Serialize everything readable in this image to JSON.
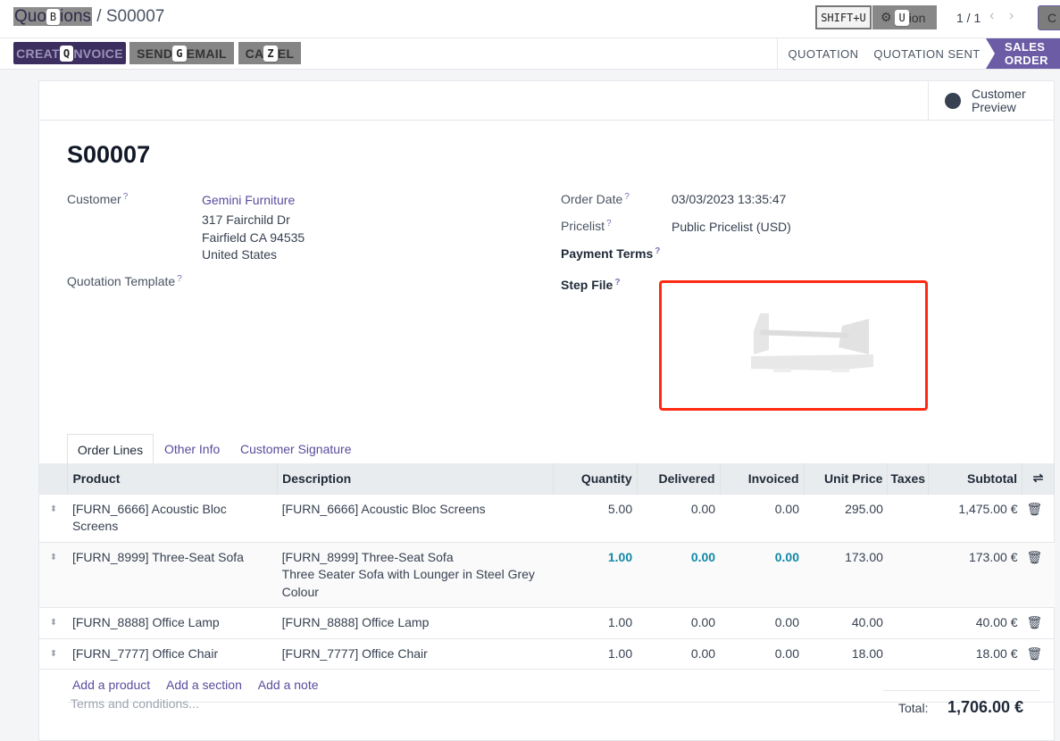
{
  "breadcrumb": {
    "parent_part1": "Quo",
    "parent_key": "B",
    "parent_part2": "ions",
    "separator": "/",
    "current": "S00007"
  },
  "topbar": {
    "shortcut_label": "SHIFT+U",
    "action_key": "U",
    "action_text": "ion",
    "pager": "1 / 1",
    "create_partial": "C"
  },
  "actions": [
    {
      "part1": "CREAT",
      "key": "Q",
      "part2": "NVOICE"
    },
    {
      "part1": "SEND ",
      "key": "G",
      "part2": "EMAIL"
    },
    {
      "part1": "CA",
      "key": "Z",
      "part2": "EL"
    }
  ],
  "statusbar": [
    "QUOTATION",
    "QUOTATION SENT",
    "SALES ORDER"
  ],
  "customer_preview": {
    "line1": "Customer",
    "line2": "Preview"
  },
  "record": {
    "name": "S00007",
    "customer_label": "Customer",
    "customer_name": "Gemini Furniture",
    "address1": "317 Fairchild Dr",
    "address2": "Fairfield CA 94535",
    "address3": "United States",
    "template_label": "Quotation Template",
    "order_date_label": "Order Date",
    "order_date": "03/03/2023 13:35:47",
    "pricelist_label": "Pricelist",
    "pricelist": "Public Pricelist (USD)",
    "payment_terms_label": "Payment Terms",
    "step_file_label": "Step File",
    "help": "?"
  },
  "tabs": [
    "Order Lines",
    "Other Info",
    "Customer Signature"
  ],
  "columns": [
    "Product",
    "Description",
    "Quantity",
    "Delivered",
    "Invoiced",
    "Unit Price",
    "Taxes",
    "Subtotal"
  ],
  "lines": [
    {
      "product": "[FURN_6666] Acoustic Bloc Screens",
      "desc1": "[FURN_6666] Acoustic Bloc Screens",
      "desc2": "",
      "desc3": "",
      "qty": "5.00",
      "delivered": "0.00",
      "invoiced": "0.00",
      "price": "295.00",
      "taxes": "",
      "subtotal": "1,475.00 €"
    },
    {
      "product": "[FURN_8999] Three-Seat Sofa",
      "desc1": "[FURN_8999] Three-Seat Sofa",
      "desc2": "Three Seater Sofa with Lounger in Steel Grey",
      "desc3": "Colour",
      "qty": "1.00",
      "delivered": "0.00",
      "invoiced": "0.00",
      "price": "173.00",
      "taxes": "",
      "subtotal": "173.00 €"
    },
    {
      "product": "[FURN_8888] Office Lamp",
      "desc1": "[FURN_8888] Office Lamp",
      "desc2": "",
      "desc3": "",
      "qty": "1.00",
      "delivered": "0.00",
      "invoiced": "0.00",
      "price": "40.00",
      "taxes": "",
      "subtotal": "40.00 €"
    },
    {
      "product": "[FURN_7777] Office Chair",
      "desc1": "[FURN_7777] Office Chair",
      "desc2": "",
      "desc3": "",
      "qty": "1.00",
      "delivered": "0.00",
      "invoiced": "0.00",
      "price": "18.00",
      "taxes": "",
      "subtotal": "18.00 €"
    }
  ],
  "add_links": [
    "Add a product",
    "Add a section",
    "Add a note"
  ],
  "terms_placeholder": "Terms and conditions...",
  "total": {
    "label": "Total:",
    "value": "1,706.00 €"
  },
  "colors": {
    "primary": "#3c2f5f",
    "status_active": "#6b5ca5",
    "link": "#5b4b9e",
    "teal": "#1087a8",
    "highlight_border": "#ff2a12"
  }
}
